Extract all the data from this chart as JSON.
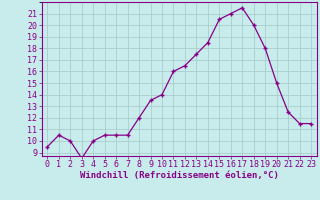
{
  "x": [
    0,
    1,
    2,
    3,
    4,
    5,
    6,
    7,
    8,
    9,
    10,
    11,
    12,
    13,
    14,
    15,
    16,
    17,
    18,
    19,
    20,
    21,
    22,
    23
  ],
  "y": [
    9.5,
    10.5,
    10.0,
    8.5,
    10.0,
    10.5,
    10.5,
    10.5,
    12.0,
    13.5,
    14.0,
    16.0,
    16.5,
    17.5,
    18.5,
    20.5,
    21.0,
    21.5,
    20.0,
    18.0,
    15.0,
    12.5,
    11.5,
    11.5
  ],
  "line_color": "#880088",
  "marker": "+",
  "marker_size": 3,
  "background_color": "#c8ecec",
  "grid_color": "#aacccc",
  "tick_color": "#880088",
  "label_color": "#880088",
  "xlabel": "Windchill (Refroidissement éolien,°C)",
  "ylabel_ticks": [
    9,
    10,
    11,
    12,
    13,
    14,
    15,
    16,
    17,
    18,
    19,
    20,
    21
  ],
  "ylim": [
    8.7,
    22.0
  ],
  "xlim": [
    -0.5,
    23.5
  ],
  "axis_fontsize": 6.5,
  "tick_fontsize": 6.0
}
